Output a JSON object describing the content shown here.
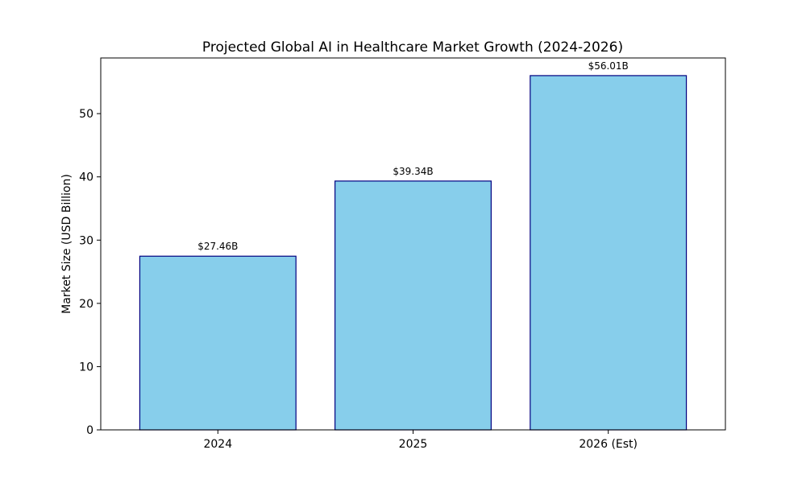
{
  "chart_data": {
    "type": "bar",
    "title": "Projected Global AI in Healthcare Market Growth (2024-2026)",
    "xlabel": "",
    "ylabel": "Market Size (USD Billion)",
    "categories": [
      "2024",
      "2025",
      "2026 (Est)"
    ],
    "values": [
      27.46,
      39.34,
      56.01
    ],
    "data_labels": [
      "$27.46B",
      "$39.34B",
      "$56.01B"
    ],
    "ylim": [
      0,
      58.8
    ],
    "yticks": [
      0,
      10,
      20,
      30,
      40,
      50
    ],
    "grid": false,
    "legend": "none",
    "bar_color": "#87CEEB",
    "bar_edge_color": "#000080"
  }
}
